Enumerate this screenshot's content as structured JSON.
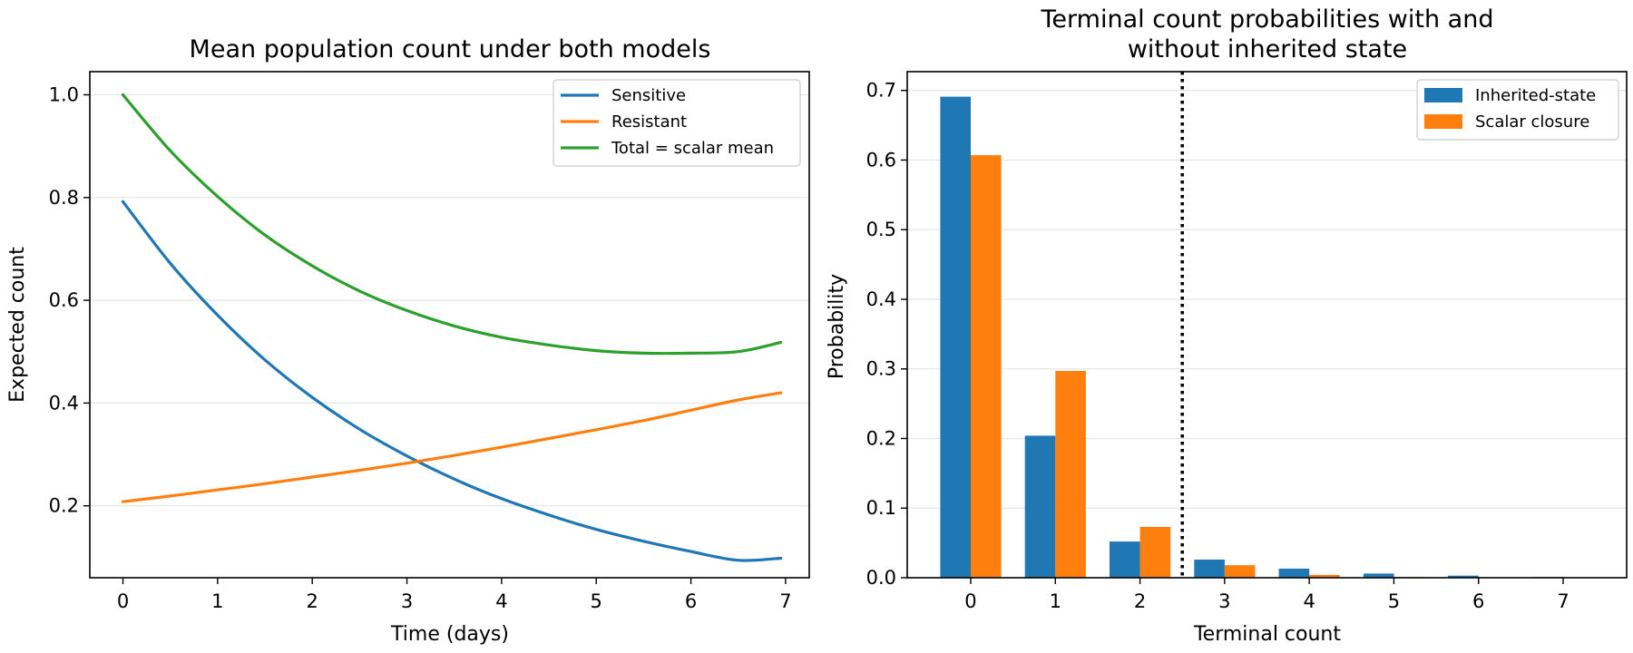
{
  "chart_data": [
    {
      "type": "line",
      "title": "Mean population count under both models",
      "xlabel": "Time (days)",
      "ylabel": "Expected count",
      "xlim": [
        -0.35,
        7.25
      ],
      "ylim": [
        0.06,
        1.045
      ],
      "xticks": [
        0,
        1,
        2,
        3,
        4,
        5,
        6,
        7
      ],
      "yticks": [
        0.2,
        0.4,
        0.6,
        0.8,
        1.0
      ],
      "ytick_labels": [
        "0.2",
        "0.4",
        "0.6",
        "0.8",
        "1.0"
      ],
      "grid": "horizontal",
      "legend_position": "top-right",
      "x": [
        0,
        0.5,
        1,
        1.5,
        2,
        2.5,
        3,
        3.5,
        4,
        4.5,
        5,
        5.5,
        6,
        6.5,
        6.95
      ],
      "series": [
        {
          "name": "Sensitive",
          "color": "#1f77b4",
          "values": [
            0.792,
            0.672,
            0.571,
            0.484,
            0.411,
            0.349,
            0.297,
            0.252,
            0.214,
            0.182,
            0.154,
            0.131,
            0.111,
            0.094,
            0.098
          ]
        },
        {
          "name": "Resistant",
          "color": "#ff7f0e",
          "values": [
            0.208,
            0.219,
            0.231,
            0.243,
            0.256,
            0.269,
            0.283,
            0.298,
            0.314,
            0.331,
            0.348,
            0.366,
            0.386,
            0.406,
            0.42
          ]
        },
        {
          "name": "Total = scalar mean",
          "color": "#2ca02c",
          "values": [
            1.0,
            0.891,
            0.802,
            0.727,
            0.667,
            0.618,
            0.58,
            0.55,
            0.528,
            0.513,
            0.502,
            0.497,
            0.497,
            0.5,
            0.518
          ]
        }
      ]
    },
    {
      "type": "bar",
      "title": [
        "Terminal count probabilities with and",
        "without inherited state"
      ],
      "xlabel": "Terminal count",
      "ylabel": "Probability",
      "categories": [
        "0",
        "1",
        "2",
        "3",
        "4",
        "5",
        "6",
        "7"
      ],
      "xlim": [
        -0.75,
        7.75
      ],
      "ylim": [
        0,
        0.727
      ],
      "yticks": [
        0.0,
        0.1,
        0.2,
        0.3,
        0.4,
        0.5,
        0.6,
        0.7
      ],
      "ytick_labels": [
        "0.0",
        "0.1",
        "0.2",
        "0.3",
        "0.4",
        "0.5",
        "0.6",
        "0.7"
      ],
      "grid": "horizontal",
      "legend_position": "top-right",
      "threshold_line_x": 2.5,
      "series": [
        {
          "name": "Inherited-state",
          "color": "#1f77b4",
          "values": [
            0.691,
            0.204,
            0.052,
            0.026,
            0.013,
            0.006,
            0.003,
            0.001
          ]
        },
        {
          "name": "Scalar closure",
          "color": "#ff7f0e",
          "values": [
            0.607,
            0.297,
            0.073,
            0.018,
            0.004,
            0.001,
            0.0,
            0.0
          ]
        }
      ]
    }
  ]
}
